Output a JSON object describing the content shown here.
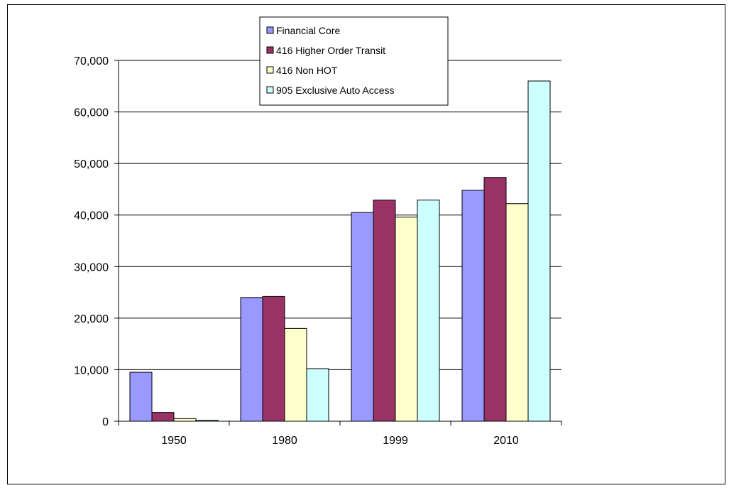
{
  "chart_data": {
    "type": "bar",
    "title": "",
    "xlabel": "",
    "ylabel": "",
    "categories": [
      "1950",
      "1980",
      "1999",
      "2010"
    ],
    "ylim": [
      0,
      70000
    ],
    "yticks": [
      0,
      10000,
      20000,
      30000,
      40000,
      50000,
      60000,
      70000
    ],
    "ytick_labels": [
      "0",
      "10,000",
      "20,000",
      "30,000",
      "40,000",
      "50,000",
      "60,000",
      "70,000"
    ],
    "grid": "horizontal",
    "legend_position": "top-center",
    "series": [
      {
        "name": "Financial Core",
        "color": "#9999ff",
        "values": [
          9500,
          24000,
          40500,
          44800
        ]
      },
      {
        "name": "416 Higher Order Transit",
        "color": "#993366",
        "values": [
          1700,
          24200,
          42900,
          47300
        ]
      },
      {
        "name": "416 Non HOT",
        "color": "#ffffcc",
        "values": [
          500,
          18000,
          39600,
          42200
        ]
      },
      {
        "name": "905 Exclusive Auto Access",
        "color": "#ccffff",
        "values": [
          200,
          10200,
          42900,
          66000
        ]
      }
    ]
  }
}
